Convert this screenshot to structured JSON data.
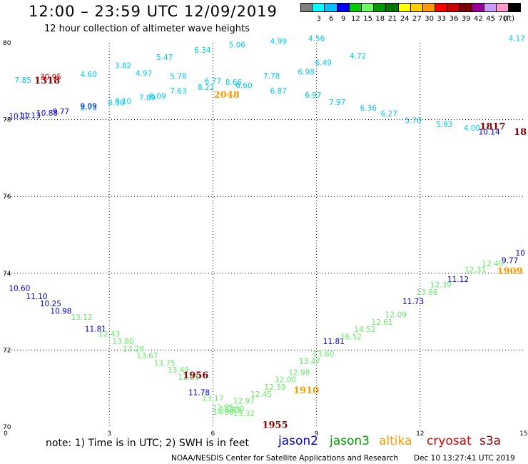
{
  "header": {
    "title": "12:00 – 23:59 UTC 12/09/2019",
    "subtitle": "12 hour collection of altimeter wave heights"
  },
  "colorbar": {
    "unit": "(ft)",
    "entries": [
      {
        "label": "",
        "color": "#808080"
      },
      {
        "label": "3",
        "color": "#00ffff"
      },
      {
        "label": "6",
        "color": "#00bfff"
      },
      {
        "label": "9",
        "color": "#0000ff"
      },
      {
        "label": "12",
        "color": "#00cc00"
      },
      {
        "label": "15",
        "color": "#66ff66"
      },
      {
        "label": "18",
        "color": "#009900"
      },
      {
        "label": "21",
        "color": "#007700"
      },
      {
        "label": "24",
        "color": "#ffff00"
      },
      {
        "label": "27",
        "color": "#ffcc00"
      },
      {
        "label": "30",
        "color": "#ff9900"
      },
      {
        "label": "33",
        "color": "#ff0000"
      },
      {
        "label": "36",
        "color": "#cc0000"
      },
      {
        "label": "39",
        "color": "#800000"
      },
      {
        "label": "42",
        "color": "#990099"
      },
      {
        "label": "45",
        "color": "#cc99ff"
      },
      {
        "label": "70",
        "color": "#ff99cc"
      },
      {
        "label": "",
        "color": "#000000"
      }
    ]
  },
  "footer": {
    "note": "note:  1) Time is in UTC;  2) SWH is in feet",
    "credit": "NOAA/NESDIS Center for Satellite Applications and Research",
    "timestamp": "Dec 10 13:27:41 UTC 2019"
  },
  "legend": [
    {
      "name": "jason2",
      "color": "#0000cc"
    },
    {
      "name": "jason3",
      "color": "#00a000"
    },
    {
      "name": "altika",
      "color": "#ff9900"
    },
    {
      "name": "cryosat",
      "color": "#dd0000"
    },
    {
      "name": "s3a",
      "color": "#990000"
    }
  ],
  "chart_data": {
    "type": "scatter",
    "xlim": [
      0,
      15
    ],
    "ylim": [
      70,
      80
    ],
    "xticks": [
      "0",
      "3",
      "6",
      "9",
      "12",
      "15"
    ],
    "yticks": [
      "70",
      "72",
      "74",
      "76",
      "78",
      "80"
    ],
    "grid": true,
    "series_colors": {
      "jason2": "#0000cc",
      "jason3": "#66ee66",
      "jason3_label": "#00a000",
      "altika": "#ff9900",
      "s3a": "#00ccee",
      "cryosat": "#dd0000",
      "pass_time": "#880000"
    },
    "points": [
      {
        "x": 0.5,
        "y": 78.96,
        "text": "7.85",
        "series": "s3a"
      },
      {
        "x": 2.4,
        "y": 79.11,
        "text": "4.60",
        "series": "s3a"
      },
      {
        "x": 3.4,
        "y": 79.34,
        "text": "3.82",
        "series": "s3a"
      },
      {
        "x": 4.0,
        "y": 79.14,
        "text": "4.97",
        "series": "s3a"
      },
      {
        "x": 4.6,
        "y": 79.55,
        "text": "5.47",
        "series": "s3a"
      },
      {
        "x": 5.0,
        "y": 79.06,
        "text": "5.78",
        "series": "s3a"
      },
      {
        "x": 5.7,
        "y": 79.74,
        "text": "6.34",
        "series": "s3a"
      },
      {
        "x": 6.0,
        "y": 78.94,
        "text": "6.77",
        "series": "s3a"
      },
      {
        "x": 5.8,
        "y": 78.77,
        "text": "8.22",
        "series": "s3a"
      },
      {
        "x": 5.0,
        "y": 78.68,
        "text": "7.63",
        "series": "s3a"
      },
      {
        "x": 4.4,
        "y": 78.54,
        "text": "8.09",
        "series": "s3a"
      },
      {
        "x": 4.1,
        "y": 78.5,
        "text": "7.89",
        "series": "s3a"
      },
      {
        "x": 3.4,
        "y": 78.41,
        "text": "8.10",
        "series": "s3a"
      },
      {
        "x": 3.2,
        "y": 78.37,
        "text": "8.39",
        "series": "s3a"
      },
      {
        "x": 2.4,
        "y": 78.24,
        "text": "8.73",
        "series": "s3a"
      },
      {
        "x": 6.7,
        "y": 79.88,
        "text": "5.06",
        "series": "s3a"
      },
      {
        "x": 6.6,
        "y": 78.9,
        "text": "8.66",
        "series": "s3a"
      },
      {
        "x": 6.9,
        "y": 78.82,
        "text": "6.60",
        "series": "s3a"
      },
      {
        "x": 7.7,
        "y": 79.07,
        "text": "7.78",
        "series": "s3a"
      },
      {
        "x": 7.9,
        "y": 79.97,
        "text": "4.99",
        "series": "s3a"
      },
      {
        "x": 7.9,
        "y": 78.68,
        "text": "6.87",
        "series": "s3a"
      },
      {
        "x": 9.0,
        "y": 80.05,
        "text": "4.56",
        "series": "s3a"
      },
      {
        "x": 8.7,
        "y": 79.17,
        "text": "6.98",
        "series": "s3a"
      },
      {
        "x": 9.2,
        "y": 79.41,
        "text": "6.49",
        "series": "s3a"
      },
      {
        "x": 10.2,
        "y": 79.59,
        "text": "4.72",
        "series": "s3a"
      },
      {
        "x": 8.9,
        "y": 78.57,
        "text": "6.97",
        "series": "s3a"
      },
      {
        "x": 9.6,
        "y": 78.38,
        "text": "7.97",
        "series": "s3a"
      },
      {
        "x": 10.5,
        "y": 78.23,
        "text": "6.36",
        "series": "s3a"
      },
      {
        "x": 11.1,
        "y": 78.09,
        "text": "6.27",
        "series": "s3a"
      },
      {
        "x": 11.8,
        "y": 77.91,
        "text": "5.70",
        "series": "s3a"
      },
      {
        "x": 12.7,
        "y": 77.81,
        "text": "5.93",
        "series": "s3a"
      },
      {
        "x": 13.5,
        "y": 77.71,
        "text": "4.00",
        "series": "s3a"
      },
      {
        "x": 14.8,
        "y": 80.05,
        "text": "4.17",
        "series": "s3a"
      },
      {
        "x": 1.3,
        "y": 79.04,
        "text": "30.95",
        "series": "cryosat"
      },
      {
        "x": 0.4,
        "y": 78.02,
        "text": "10.17",
        "series": "jason2"
      },
      {
        "x": 0.7,
        "y": 78.04,
        "text": "11.13",
        "series": "jason2"
      },
      {
        "x": 1.2,
        "y": 78.1,
        "text": "10.88",
        "series": "jason2"
      },
      {
        "x": 1.6,
        "y": 78.14,
        "text": "9.77",
        "series": "jason2"
      },
      {
        "x": 2.4,
        "y": 78.28,
        "text": "9.09",
        "series": "jason2"
      },
      {
        "x": 14.0,
        "y": 77.61,
        "text": "10.14",
        "series": "jason2"
      },
      {
        "x": 0.4,
        "y": 73.54,
        "text": "10.60",
        "series": "jason2"
      },
      {
        "x": 0.9,
        "y": 73.33,
        "text": "11.10",
        "series": "jason2"
      },
      {
        "x": 1.3,
        "y": 73.14,
        "text": "10.25",
        "series": "jason2"
      },
      {
        "x": 1.6,
        "y": 72.95,
        "text": "10.98",
        "series": "jason2"
      },
      {
        "x": 2.6,
        "y": 72.48,
        "text": "11.81",
        "series": "jason2"
      },
      {
        "x": 5.6,
        "y": 70.83,
        "text": "11.78",
        "series": "jason2"
      },
      {
        "x": 9.5,
        "y": 72.16,
        "text": "11.81",
        "series": "jason2"
      },
      {
        "x": 11.8,
        "y": 73.2,
        "text": "11.73",
        "series": "jason2"
      },
      {
        "x": 13.1,
        "y": 73.77,
        "text": "11.12",
        "series": "jason2"
      },
      {
        "x": 14.6,
        "y": 74.27,
        "text": "9.77",
        "series": "jason2"
      },
      {
        "x": 14.9,
        "y": 74.46,
        "text": "10",
        "series": "jason2"
      },
      {
        "x": 2.2,
        "y": 72.79,
        "text": "13.12",
        "series": "jason3"
      },
      {
        "x": 3.0,
        "y": 72.35,
        "text": "12.43",
        "series": "jason3"
      },
      {
        "x": 3.4,
        "y": 72.16,
        "text": "13.80",
        "series": "jason3"
      },
      {
        "x": 3.7,
        "y": 71.96,
        "text": "13.28",
        "series": "jason3"
      },
      {
        "x": 4.1,
        "y": 71.78,
        "text": "13.67",
        "series": "jason3"
      },
      {
        "x": 4.6,
        "y": 71.59,
        "text": "13.75",
        "series": "jason3"
      },
      {
        "x": 5.0,
        "y": 71.41,
        "text": "13.49",
        "series": "jason3"
      },
      {
        "x": 5.3,
        "y": 71.23,
        "text": "12.85",
        "series": "jason3"
      },
      {
        "x": 6.0,
        "y": 70.68,
        "text": "13.17",
        "series": "jason3"
      },
      {
        "x": 6.3,
        "y": 70.44,
        "text": "12.75",
        "series": "jason3"
      },
      {
        "x": 6.3,
        "y": 70.32,
        "text": "14.58",
        "series": "jason3"
      },
      {
        "x": 6.5,
        "y": 70.37,
        "text": "13.33",
        "series": "jason3"
      },
      {
        "x": 6.6,
        "y": 70.4,
        "text": "12.50",
        "series": "jason3"
      },
      {
        "x": 6.9,
        "y": 70.6,
        "text": "12.97",
        "series": "jason3"
      },
      {
        "x": 6.9,
        "y": 70.28,
        "text": "13.32",
        "series": "jason3"
      },
      {
        "x": 7.4,
        "y": 70.78,
        "text": "12.45",
        "series": "jason3"
      },
      {
        "x": 7.8,
        "y": 70.97,
        "text": "12.39",
        "series": "jason3"
      },
      {
        "x": 8.1,
        "y": 71.16,
        "text": "12.00",
        "series": "jason3"
      },
      {
        "x": 8.5,
        "y": 71.35,
        "text": "12.98",
        "series": "jason3"
      },
      {
        "x": 8.8,
        "y": 71.64,
        "text": "13.47",
        "series": "jason3"
      },
      {
        "x": 9.2,
        "y": 71.83,
        "text": "13.60",
        "series": "jason3"
      },
      {
        "x": 10.0,
        "y": 72.28,
        "text": "16.52",
        "series": "jason3"
      },
      {
        "x": 10.4,
        "y": 72.47,
        "text": "14.52",
        "series": "jason3"
      },
      {
        "x": 10.9,
        "y": 72.66,
        "text": "12.61",
        "series": "jason3"
      },
      {
        "x": 11.3,
        "y": 72.85,
        "text": "12.09",
        "series": "jason3"
      },
      {
        "x": 12.2,
        "y": 73.44,
        "text": "13.86",
        "series": "jason3"
      },
      {
        "x": 12.6,
        "y": 73.63,
        "text": "12.39",
        "series": "jason3"
      },
      {
        "x": 13.6,
        "y": 74.02,
        "text": "12.31",
        "series": "jason3"
      },
      {
        "x": 14.1,
        "y": 74.18,
        "text": "12.40",
        "series": "jason3"
      },
      {
        "x": 6.4,
        "y": 78.57,
        "text": "2048",
        "series": "altika",
        "bold": true
      },
      {
        "x": 8.7,
        "y": 70.87,
        "text": "1910",
        "series": "altika",
        "bold": true
      },
      {
        "x": 14.6,
        "y": 73.98,
        "text": "1909",
        "series": "altika",
        "bold": true
      },
      {
        "x": 1.2,
        "y": 78.94,
        "text": "1318",
        "series": "pass_time",
        "bold": true
      },
      {
        "x": 5.5,
        "y": 71.26,
        "text": "1956",
        "series": "pass_time",
        "bold": true
      },
      {
        "x": 7.8,
        "y": 69.97,
        "text": "1955",
        "series": "pass_time",
        "bold": true
      },
      {
        "x": 14.1,
        "y": 77.74,
        "text": "1817",
        "series": "pass_time",
        "bold": true
      },
      {
        "x": 14.9,
        "y": 77.6,
        "text": "18",
        "series": "pass_time",
        "bold": true
      }
    ]
  }
}
